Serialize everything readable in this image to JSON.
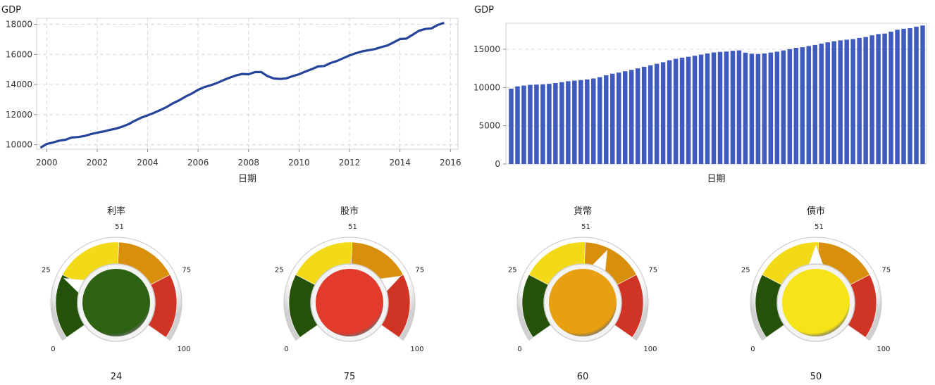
{
  "chart_data": [
    {
      "type": "line",
      "ylabel": "GDP",
      "xlabel": "日期",
      "x_ticks": [
        "2000",
        "2002",
        "2004",
        "2006",
        "2008",
        "2010",
        "2012",
        "2014",
        "2016"
      ],
      "y_ticks": [
        "10000",
        "12000",
        "14000",
        "16000",
        "18000"
      ],
      "ylim": [
        9700,
        18400
      ],
      "xlim": [
        1999.6,
        2016.3
      ],
      "grid": true,
      "series": [
        {
          "color": "#24449a",
          "x": [
            1999.75,
            2000.0,
            2000.25,
            2000.5,
            2000.75,
            2001.0,
            2001.25,
            2001.5,
            2001.75,
            2002.0,
            2002.25,
            2002.5,
            2002.75,
            2003.0,
            2003.25,
            2003.5,
            2003.75,
            2004.0,
            2004.25,
            2004.5,
            2004.75,
            2005.0,
            2005.25,
            2005.5,
            2005.75,
            2006.0,
            2006.25,
            2006.5,
            2006.75,
            2007.0,
            2007.25,
            2007.5,
            2007.75,
            2008.0,
            2008.25,
            2008.5,
            2008.75,
            2009.0,
            2009.25,
            2009.5,
            2009.75,
            2010.0,
            2010.25,
            2010.5,
            2010.75,
            2011.0,
            2011.25,
            2011.5,
            2011.75,
            2012.0,
            2012.25,
            2012.5,
            2012.75,
            2013.0,
            2013.25,
            2013.5,
            2013.75,
            2014.0,
            2014.25,
            2014.5,
            2014.75,
            2015.0,
            2015.25,
            2015.5,
            2015.75
          ],
          "y": [
            9800,
            10050,
            10150,
            10270,
            10330,
            10480,
            10510,
            10580,
            10700,
            10800,
            10880,
            10980,
            11070,
            11200,
            11370,
            11600,
            11800,
            11950,
            12120,
            12300,
            12500,
            12750,
            12950,
            13200,
            13400,
            13650,
            13830,
            13950,
            14100,
            14290,
            14450,
            14600,
            14700,
            14680,
            14820,
            14830,
            14560,
            14400,
            14370,
            14410,
            14560,
            14680,
            14860,
            15020,
            15200,
            15230,
            15430,
            15560,
            15750,
            15930,
            16080,
            16200,
            16280,
            16350,
            16480,
            16590,
            16800,
            17020,
            17050,
            17300,
            17570,
            17690,
            17730,
            17960,
            18100
          ]
        }
      ]
    },
    {
      "type": "bar",
      "ylabel": "GDP",
      "xlabel": "日期",
      "y_ticks": [
        "0",
        "5000",
        "10000",
        "15000"
      ],
      "ylim": [
        0,
        18400
      ],
      "grid": true,
      "color": "#3f5bbd",
      "values": [
        9850,
        10150,
        10250,
        10350,
        10380,
        10420,
        10480,
        10580,
        10700,
        10820,
        10900,
        10970,
        11050,
        11180,
        11350,
        11600,
        11800,
        11950,
        12120,
        12300,
        12500,
        12700,
        12900,
        13100,
        13300,
        13560,
        13750,
        13900,
        14020,
        14150,
        14300,
        14450,
        14580,
        14650,
        14700,
        14800,
        14850,
        14550,
        14420,
        14380,
        14450,
        14560,
        14680,
        14850,
        15020,
        15180,
        15260,
        15420,
        15560,
        15740,
        15900,
        16050,
        16160,
        16250,
        16330,
        16480,
        16600,
        16820,
        16980,
        17050,
        17300,
        17550,
        17680,
        17750,
        17950,
        18100
      ]
    },
    {
      "type": "gauge",
      "title": "利率",
      "value": 24,
      "value_label": "24",
      "range": [
        0,
        100
      ],
      "ticks": [
        "0",
        "25",
        "51",
        "75",
        "100"
      ],
      "center_color": "#2d6212"
    },
    {
      "type": "gauge",
      "title": "股市",
      "value": 75,
      "value_label": "75",
      "range": [
        0,
        100
      ],
      "ticks": [
        "0",
        "25",
        "51",
        "75",
        "100"
      ],
      "center_color": "#e23a2c"
    },
    {
      "type": "gauge",
      "title": "貨幣",
      "value": 60,
      "value_label": "60",
      "range": [
        0,
        100
      ],
      "ticks": [
        "0",
        "25",
        "51",
        "75",
        "100"
      ],
      "center_color": "#e8a010"
    },
    {
      "type": "gauge",
      "title": "債市",
      "value": 50,
      "value_label": "50",
      "range": [
        0,
        100
      ],
      "ticks": [
        "0",
        "25",
        "51",
        "75",
        "100"
      ],
      "center_color": "#f6e318"
    }
  ],
  "gauge_band_colors": [
    "#255208",
    "#f3da18",
    "#d8900c",
    "#cf3424"
  ]
}
